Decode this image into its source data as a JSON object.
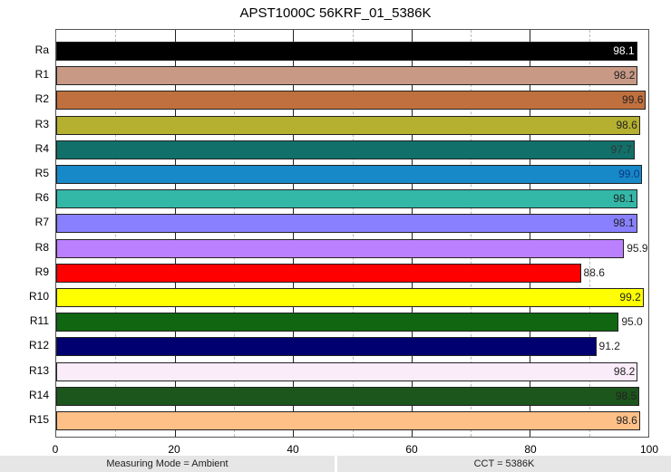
{
  "chart_data": {
    "type": "bar",
    "orientation": "horizontal",
    "title": "APST1000C 56KRF_01_5386K",
    "xlabel": "",
    "ylabel": "",
    "xlim": [
      0,
      100
    ],
    "x_ticks": [
      "0",
      "20",
      "40",
      "60",
      "80",
      "100"
    ],
    "grid": "vertical major every 20 (solid), minor every 10 (dashed)",
    "categories": [
      "Ra",
      "R1",
      "R2",
      "R3",
      "R4",
      "R5",
      "R6",
      "R7",
      "R8",
      "R9",
      "R10",
      "R11",
      "R12",
      "R13",
      "R14",
      "R15"
    ],
    "values": [
      98.1,
      98.2,
      99.6,
      98.6,
      97.7,
      99.0,
      98.1,
      98.1,
      95.9,
      88.6,
      99.2,
      95.0,
      91.2,
      98.2,
      98.5,
      98.6
    ],
    "value_labels": [
      "98.1",
      "98.2",
      "99.6",
      "98.6",
      "97.7",
      "99.0",
      "98.1",
      "98.1",
      "95.9",
      "88.6",
      "99.2",
      "95.0",
      "91.2",
      "98.2",
      "98.5",
      "98.6"
    ],
    "colors": [
      "#000000",
      "#c89a86",
      "#c0703e",
      "#b5b030",
      "#11706a",
      "#1788c8",
      "#33b8a8",
      "#8880ff",
      "#bb80ff",
      "#ff0000",
      "#ffff00",
      "#116611",
      "#000070",
      "#fbecfa",
      "#1c561c",
      "#ffc088"
    ],
    "label_colors": [
      "#ffffff",
      "#222222",
      "#222222",
      "#222222",
      "#333333",
      "#0a3a80",
      "#222222",
      "#222222",
      "#222222",
      "#222222",
      "#222222",
      "#222222",
      "#222222",
      "#222222",
      "#222222",
      "#222222"
    ]
  },
  "footer": {
    "left": "Measuring Mode = Ambient",
    "right": "CCT = 5386K"
  }
}
